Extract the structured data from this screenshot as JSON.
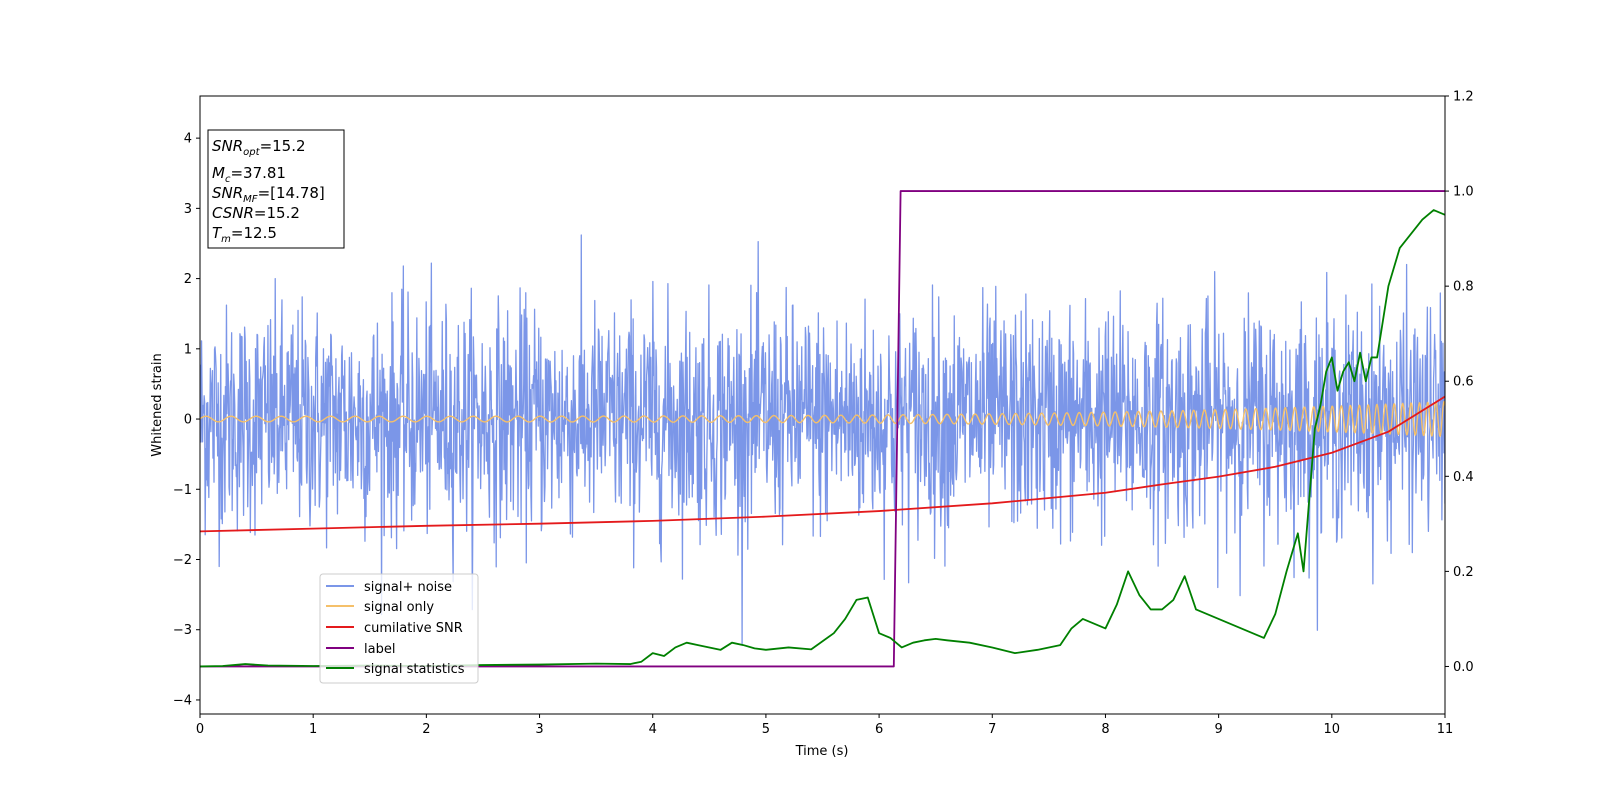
{
  "chart_data": {
    "type": "line",
    "xlabel": "Time (s)",
    "ylabel": "Whitened strain",
    "xlim": [
      0,
      11
    ],
    "ylim": [
      -4.2,
      4.6
    ],
    "y2lim": [
      -0.1,
      1.2
    ],
    "x_ticks": [
      "0",
      "1",
      "2",
      "3",
      "4",
      "5",
      "6",
      "7",
      "8",
      "9",
      "10",
      "11"
    ],
    "y_ticks": [
      "−4",
      "−3",
      "−2",
      "−1",
      "0",
      "1",
      "2",
      "3",
      "4"
    ],
    "y2_ticks": [
      "0.0",
      "0.2",
      "0.4",
      "0.6",
      "0.8",
      "1.0",
      "1.2"
    ],
    "grid": false,
    "legend_position": "lower-left",
    "info_box": {
      "snr_opt": {
        "sym": "SNR",
        "sub": "opt",
        "val": "=15.2"
      },
      "mc": {
        "sym": "M",
        "sub": "c",
        "val": "=37.81"
      },
      "snr_mf": {
        "sym": "SNR",
        "sub": "MF",
        "val": "=[14.78]"
      },
      "csnr": {
        "sym": "CSNR",
        "sub": "",
        "val": "=15.2"
      },
      "tm": {
        "sym": "T",
        "sub": "m",
        "val": "=12.5"
      }
    },
    "series": [
      {
        "name": "signal+ noise",
        "color": "#7b96e8",
        "axis": "left",
        "kind": "noise",
        "std": 0.8,
        "spike_max": 3.4,
        "points": 2400
      },
      {
        "name": "signal only",
        "color": "#f5c06a",
        "axis": "left",
        "kind": "chirp",
        "amplitude_start": 0.04,
        "amplitude_end": 0.25,
        "freq_start_hz": 4.5,
        "freq_end_hz": 14
      },
      {
        "name": "cumilative SNR",
        "color": "#e41a1c",
        "axis": "left",
        "x": [
          0,
          1,
          2,
          3,
          4,
          5,
          6,
          7,
          8,
          8.5,
          9,
          9.5,
          10,
          10.5,
          11
        ],
        "y": [
          -1.6,
          -1.56,
          -1.52,
          -1.49,
          -1.45,
          -1.39,
          -1.31,
          -1.2,
          -1.05,
          -0.93,
          -0.82,
          -0.68,
          -0.48,
          -0.18,
          0.32
        ]
      },
      {
        "name": "label",
        "color": "#800080",
        "axis": "right",
        "x": [
          0,
          6.13,
          6.19,
          11
        ],
        "y": [
          0,
          0,
          1,
          1
        ]
      },
      {
        "name": "signal statistics",
        "color": "#008000",
        "axis": "right",
        "x": [
          0,
          0.2,
          0.4,
          0.6,
          1.0,
          1.5,
          2.0,
          2.5,
          3.0,
          3.5,
          3.8,
          3.9,
          4.0,
          4.1,
          4.2,
          4.3,
          4.4,
          4.6,
          4.7,
          4.8,
          4.9,
          5.0,
          5.2,
          5.4,
          5.6,
          5.7,
          5.8,
          5.9,
          6.0,
          6.1,
          6.2,
          6.3,
          6.4,
          6.5,
          6.6,
          6.8,
          7.0,
          7.2,
          7.4,
          7.6,
          7.7,
          7.8,
          7.9,
          8.0,
          8.1,
          8.2,
          8.3,
          8.4,
          8.5,
          8.6,
          8.7,
          8.8,
          8.9,
          9.0,
          9.1,
          9.2,
          9.3,
          9.4,
          9.5,
          9.6,
          9.7,
          9.75,
          9.8,
          9.85,
          9.9,
          9.95,
          10.0,
          10.05,
          10.1,
          10.15,
          10.2,
          10.25,
          10.3,
          10.35,
          10.4,
          10.5,
          10.6,
          10.7,
          10.8,
          10.9,
          11.0
        ],
        "y": [
          0.0,
          0.001,
          0.005,
          0.002,
          0.001,
          0.002,
          0.001,
          0.003,
          0.004,
          0.006,
          0.005,
          0.01,
          0.028,
          0.022,
          0.04,
          0.05,
          0.045,
          0.035,
          0.05,
          0.045,
          0.038,
          0.035,
          0.04,
          0.036,
          0.07,
          0.1,
          0.14,
          0.145,
          0.07,
          0.06,
          0.04,
          0.05,
          0.055,
          0.058,
          0.055,
          0.05,
          0.04,
          0.028,
          0.035,
          0.045,
          0.08,
          0.1,
          0.09,
          0.08,
          0.13,
          0.2,
          0.15,
          0.12,
          0.12,
          0.14,
          0.19,
          0.12,
          0.11,
          0.1,
          0.09,
          0.08,
          0.07,
          0.06,
          0.11,
          0.2,
          0.28,
          0.2,
          0.35,
          0.5,
          0.55,
          0.62,
          0.65,
          0.58,
          0.62,
          0.64,
          0.6,
          0.66,
          0.6,
          0.65,
          0.65,
          0.8,
          0.88,
          0.91,
          0.94,
          0.96,
          0.95
        ]
      }
    ]
  }
}
